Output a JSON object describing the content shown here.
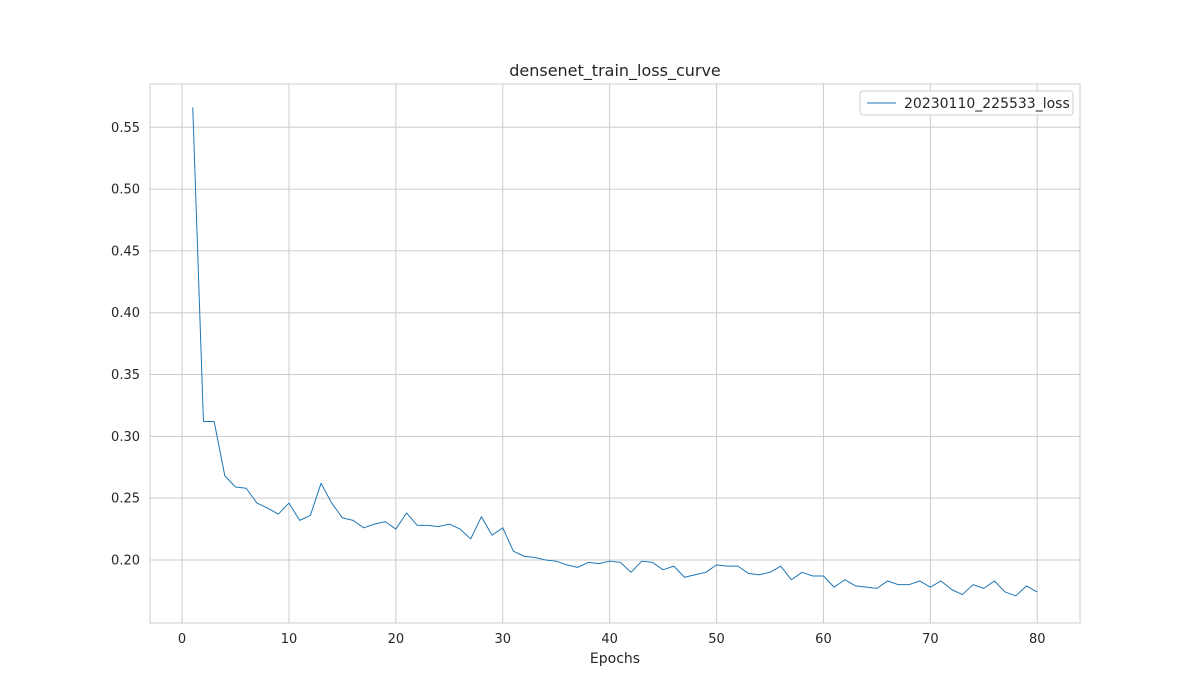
{
  "chart_data": {
    "type": "line",
    "title": "densenet_train_loss_curve",
    "xlabel": "Epochs",
    "ylabel": "",
    "xlim": [
      -3,
      84
    ],
    "ylim": [
      0.149,
      0.585
    ],
    "xticks": [
      0,
      10,
      20,
      30,
      40,
      50,
      60,
      70,
      80
    ],
    "yticks": [
      0.2,
      0.25,
      0.3,
      0.35,
      0.4,
      0.45,
      0.5,
      0.55
    ],
    "ytick_labels": [
      "0.20",
      "0.25",
      "0.30",
      "0.35",
      "0.40",
      "0.45",
      "0.50",
      "0.55"
    ],
    "grid": true,
    "legend_position": "top-right",
    "series": [
      {
        "name": "20230110_225533_loss",
        "color": "#1f77b4",
        "x": [
          1,
          2,
          3,
          4,
          5,
          6,
          7,
          8,
          9,
          10,
          11,
          12,
          13,
          14,
          15,
          16,
          17,
          18,
          19,
          20,
          21,
          22,
          23,
          24,
          25,
          26,
          27,
          28,
          29,
          30,
          31,
          32,
          33,
          34,
          35,
          36,
          37,
          38,
          39,
          40,
          41,
          42,
          43,
          44,
          45,
          46,
          47,
          48,
          49,
          50,
          51,
          52,
          53,
          54,
          55,
          56,
          57,
          58,
          59,
          60,
          61,
          62,
          63,
          64,
          65,
          66,
          67,
          68,
          69,
          70,
          71,
          72,
          73,
          74,
          75,
          76,
          77,
          78,
          79,
          80
        ],
        "y": [
          0.566,
          0.312,
          0.312,
          0.268,
          0.259,
          0.258,
          0.246,
          0.242,
          0.237,
          0.246,
          0.232,
          0.236,
          0.262,
          0.246,
          0.234,
          0.232,
          0.226,
          0.229,
          0.231,
          0.225,
          0.238,
          0.228,
          0.228,
          0.227,
          0.229,
          0.225,
          0.217,
          0.235,
          0.22,
          0.226,
          0.207,
          0.203,
          0.202,
          0.2,
          0.199,
          0.196,
          0.194,
          0.198,
          0.197,
          0.199,
          0.198,
          0.19,
          0.199,
          0.198,
          0.192,
          0.195,
          0.186,
          0.188,
          0.19,
          0.196,
          0.195,
          0.195,
          0.189,
          0.188,
          0.19,
          0.195,
          0.184,
          0.19,
          0.187,
          0.187,
          0.178,
          0.184,
          0.179,
          0.178,
          0.177,
          0.183,
          0.18,
          0.18,
          0.183,
          0.178,
          0.183,
          0.176,
          0.172,
          0.18,
          0.177,
          0.183,
          0.174,
          0.171,
          0.179,
          0.174
        ]
      }
    ]
  }
}
